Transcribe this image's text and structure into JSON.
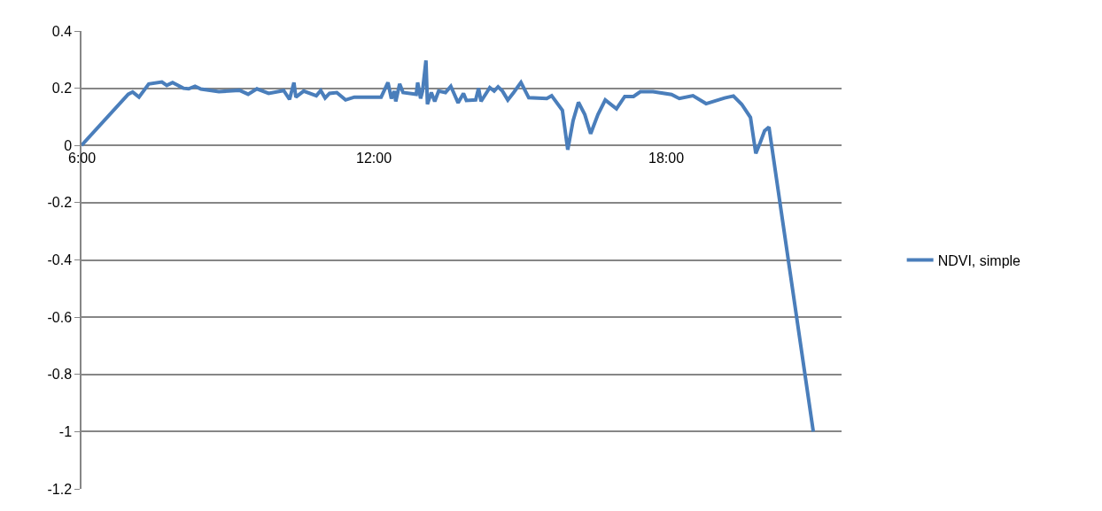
{
  "chart_data": {
    "type": "line",
    "x": [
      6.0,
      6.96,
      7.05,
      7.18,
      7.38,
      7.65,
      7.75,
      7.87,
      8.09,
      8.2,
      8.33,
      8.45,
      8.82,
      9.24,
      9.42,
      9.6,
      9.84,
      10.15,
      10.27,
      10.36,
      10.4,
      10.56,
      10.82,
      10.91,
      11.0,
      11.09,
      11.24,
      11.42,
      11.6,
      12.15,
      12.29,
      12.36,
      12.42,
      12.45,
      12.53,
      12.6,
      12.87,
      12.9,
      12.96,
      13.0,
      13.07,
      13.1,
      13.18,
      13.25,
      13.33,
      13.47,
      13.58,
      13.73,
      13.84,
      13.9,
      14.09,
      14.15,
      14.2,
      14.38,
      14.47,
      14.55,
      14.64,
      14.75,
      14.87,
      15.02,
      15.18,
      15.55,
      15.65,
      15.87,
      15.98,
      16.09,
      16.2,
      16.33,
      16.45,
      16.6,
      16.75,
      16.98,
      17.15,
      17.33,
      17.47,
      17.73,
      18.11,
      18.27,
      18.55,
      18.82,
      19.2,
      19.38,
      19.55,
      19.73,
      19.84,
      19.93,
      20.02,
      20.11,
      21.02
    ],
    "series": [
      {
        "name": "NDVI, simple",
        "color": "#4a7ebb",
        "values": [
          0,
          0.179,
          0.187,
          0.169,
          0.215,
          0.222,
          0.21,
          0.22,
          0.2,
          0.198,
          0.207,
          0.197,
          0.188,
          0.193,
          0.179,
          0.198,
          0.182,
          0.192,
          0.161,
          0.22,
          0.169,
          0.19,
          0.174,
          0.192,
          0.166,
          0.182,
          0.185,
          0.159,
          0.169,
          0.169,
          0.22,
          0.164,
          0.19,
          0.154,
          0.215,
          0.185,
          0.179,
          0.22,
          0.164,
          0.19,
          0.297,
          0.144,
          0.185,
          0.154,
          0.19,
          0.185,
          0.207,
          0.149,
          0.182,
          0.157,
          0.159,
          0.2,
          0.154,
          0.202,
          0.19,
          0.205,
          0.19,
          0.159,
          0.185,
          0.22,
          0.167,
          0.164,
          0.174,
          0.123,
          -0.015,
          0.087,
          0.151,
          0.108,
          0.041,
          0.108,
          0.159,
          0.128,
          0.171,
          0.171,
          0.188,
          0.188,
          0.178,
          0.164,
          0.174,
          0.146,
          0.166,
          0.173,
          0.144,
          0.098,
          -0.028,
          0.01,
          0.051,
          0.064,
          -1.0
        ]
      }
    ],
    "xlim": [
      6,
      21.6
    ],
    "xticks": [
      {
        "value": 6,
        "label": "6:00"
      },
      {
        "value": 12,
        "label": "12:00"
      },
      {
        "value": 18,
        "label": "18:00"
      }
    ],
    "ylim": [
      -1.2,
      0.4
    ],
    "yticks": [
      0.4,
      0.2,
      0,
      -0.2,
      -0.4,
      -0.6,
      -0.8,
      -1,
      -1.2
    ],
    "grid": "y",
    "legend": "right",
    "marker": "none",
    "line_style": "solid"
  }
}
